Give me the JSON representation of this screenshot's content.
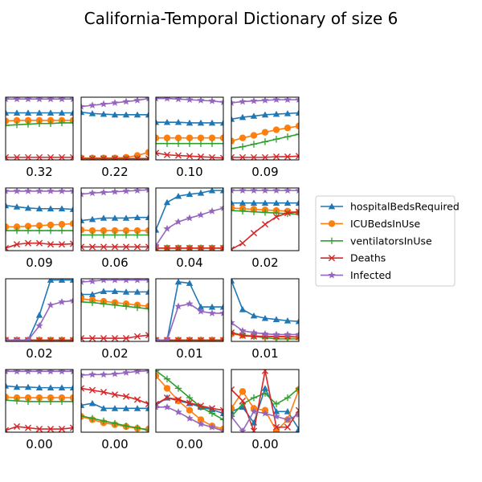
{
  "figure": {
    "title": "California-Temporal Dictionary of size 6"
  },
  "chart_data": {
    "type": "line",
    "title": "California-Temporal Dictionary of size 6",
    "x": [
      0,
      1,
      2,
      3,
      4,
      5,
      6
    ],
    "grid": false,
    "legend_placement": "center-right",
    "series_meta": [
      {
        "name": "hospitalBedsRequired",
        "color": "#1f77b4",
        "marker": "triangle"
      },
      {
        "name": "ICUBedsInUse",
        "color": "#ff7f0e",
        "marker": "circle"
      },
      {
        "name": "ventilatorsInUse",
        "color": "#2ca02c",
        "marker": "plus"
      },
      {
        "name": "Deaths",
        "color": "#d62728",
        "marker": "x"
      },
      {
        "name": "Infected",
        "color": "#9467bd",
        "marker": "star"
      }
    ],
    "panels": [
      {
        "label": "0.32",
        "series": {
          "hospitalBedsRequired": [
            0.75,
            0.75,
            0.75,
            0.75,
            0.75,
            0.75,
            0.75
          ],
          "ICUBedsInUse": [
            0.62,
            0.63,
            0.63,
            0.63,
            0.63,
            0.63,
            0.63
          ],
          "ventilatorsInUse": [
            0.55,
            0.56,
            0.57,
            0.58,
            0.58,
            0.59,
            0.59
          ],
          "Deaths": [
            0.04,
            0.04,
            0.04,
            0.04,
            0.04,
            0.04,
            0.04
          ],
          "Infected": [
            0.97,
            0.97,
            0.97,
            0.97,
            0.97,
            0.97,
            0.97
          ]
        }
      },
      {
        "label": "0.22",
        "series": {
          "hospitalBedsRequired": [
            0.76,
            0.74,
            0.73,
            0.72,
            0.72,
            0.72,
            0.72
          ],
          "ICUBedsInUse": [
            0.03,
            0.03,
            0.03,
            0.03,
            0.04,
            0.07,
            0.12
          ],
          "ventilatorsInUse": [
            0.02,
            0.02,
            0.02,
            0.02,
            0.02,
            0.02,
            0.02
          ],
          "Deaths": [
            0.02,
            0.02,
            0.02,
            0.02,
            0.02,
            0.02,
            0.02
          ],
          "Infected": [
            0.85,
            0.87,
            0.89,
            0.91,
            0.93,
            0.95,
            0.98
          ]
        }
      },
      {
        "label": "0.10",
        "series": {
          "hospitalBedsRequired": [
            0.6,
            0.6,
            0.6,
            0.59,
            0.59,
            0.59,
            0.59
          ],
          "ICUBedsInUse": [
            0.35,
            0.35,
            0.35,
            0.35,
            0.35,
            0.35,
            0.35
          ],
          "ventilatorsInUse": [
            0.26,
            0.26,
            0.26,
            0.26,
            0.26,
            0.26,
            0.26
          ],
          "Deaths": [
            0.11,
            0.08,
            0.07,
            0.06,
            0.05,
            0.04,
            0.03
          ],
          "Infected": [
            0.98,
            0.98,
            0.97,
            0.96,
            0.95,
            0.94,
            0.92
          ]
        }
      },
      {
        "label": "0.09",
        "series": {
          "hospitalBedsRequired": [
            0.65,
            0.68,
            0.7,
            0.72,
            0.73,
            0.74,
            0.75
          ],
          "ICUBedsInUse": [
            0.3,
            0.35,
            0.39,
            0.44,
            0.48,
            0.51,
            0.54
          ],
          "ventilatorsInUse": [
            0.18,
            0.21,
            0.25,
            0.29,
            0.33,
            0.37,
            0.41
          ],
          "Deaths": [
            0.04,
            0.04,
            0.04,
            0.04,
            0.05,
            0.05,
            0.06
          ],
          "Infected": [
            0.91,
            0.93,
            0.94,
            0.95,
            0.96,
            0.96,
            0.96
          ]
        }
      },
      {
        "label": "0.09",
        "series": {
          "hospitalBedsRequired": [
            0.72,
            0.7,
            0.68,
            0.67,
            0.67,
            0.67,
            0.66
          ],
          "ICUBedsInUse": [
            0.38,
            0.38,
            0.39,
            0.4,
            0.41,
            0.42,
            0.43
          ],
          "ventilatorsInUse": [
            0.32,
            0.32,
            0.32,
            0.32,
            0.32,
            0.32,
            0.32
          ],
          "Deaths": [
            0.04,
            0.1,
            0.12,
            0.12,
            0.1,
            0.1,
            0.11
          ],
          "Infected": [
            0.95,
            0.95,
            0.95,
            0.95,
            0.95,
            0.95,
            0.95
          ]
        }
      },
      {
        "label": "0.06",
        "series": {
          "hospitalBedsRequired": [
            0.48,
            0.5,
            0.52,
            0.52,
            0.52,
            0.53,
            0.53
          ],
          "ICUBedsInUse": [
            0.33,
            0.32,
            0.32,
            0.32,
            0.32,
            0.32,
            0.32
          ],
          "ventilatorsInUse": [
            0.25,
            0.25,
            0.25,
            0.25,
            0.25,
            0.25,
            0.25
          ],
          "Deaths": [
            0.06,
            0.06,
            0.06,
            0.06,
            0.06,
            0.06,
            0.06
          ],
          "Infected": [
            0.9,
            0.92,
            0.93,
            0.94,
            0.95,
            0.96,
            0.97
          ]
        }
      },
      {
        "label": "0.04",
        "series": {
          "hospitalBedsRequired": [
            0.33,
            0.77,
            0.87,
            0.9,
            0.92,
            0.96,
            0.96
          ],
          "ICUBedsInUse": [
            0.04,
            0.04,
            0.04,
            0.04,
            0.04,
            0.04,
            0.04
          ],
          "ventilatorsInUse": [
            0.04,
            0.04,
            0.04,
            0.04,
            0.04,
            0.04,
            0.04
          ],
          "Deaths": [
            0.04,
            0.04,
            0.04,
            0.04,
            0.04,
            0.04,
            0.04
          ],
          "Infected": [
            0.08,
            0.35,
            0.46,
            0.52,
            0.57,
            0.63,
            0.68
          ]
        }
      },
      {
        "label": "0.02",
        "series": {
          "hospitalBedsRequired": [
            0.76,
            0.76,
            0.76,
            0.76,
            0.76,
            0.76,
            0.76
          ],
          "ICUBedsInUse": [
            0.68,
            0.67,
            0.66,
            0.65,
            0.64,
            0.63,
            0.61
          ],
          "ventilatorsInUse": [
            0.64,
            0.63,
            0.62,
            0.61,
            0.6,
            0.59,
            0.58
          ],
          "Deaths": [
            0.02,
            0.12,
            0.28,
            0.42,
            0.54,
            0.6,
            0.62
          ],
          "Infected": [
            0.96,
            0.96,
            0.96,
            0.96,
            0.96,
            0.96,
            0.96
          ]
        }
      },
      {
        "label": "0.02",
        "series": {
          "hospitalBedsRequired": [
            0.02,
            0.02,
            0.02,
            0.42,
            0.98,
            0.98,
            0.98
          ],
          "ICUBedsInUse": [
            0.02,
            0.02,
            0.02,
            0.02,
            0.02,
            0.02,
            0.02
          ],
          "ventilatorsInUse": [
            0.02,
            0.02,
            0.02,
            0.02,
            0.02,
            0.02,
            0.02
          ],
          "Deaths": [
            0.02,
            0.02,
            0.02,
            0.02,
            0.02,
            0.02,
            0.02
          ],
          "Infected": [
            0.02,
            0.02,
            0.02,
            0.25,
            0.58,
            0.63,
            0.65
          ]
        }
      },
      {
        "label": "0.02",
        "series": {
          "hospitalBedsRequired": [
            0.75,
            0.75,
            0.8,
            0.8,
            0.79,
            0.79,
            0.79
          ],
          "ICUBedsInUse": [
            0.68,
            0.66,
            0.64,
            0.62,
            0.6,
            0.58,
            0.56
          ],
          "ventilatorsInUse": [
            0.63,
            0.62,
            0.6,
            0.58,
            0.56,
            0.54,
            0.52
          ],
          "Deaths": [
            0.05,
            0.05,
            0.05,
            0.05,
            0.05,
            0.08,
            0.1
          ],
          "Infected": [
            0.95,
            0.96,
            0.98,
            0.98,
            0.98,
            0.98,
            0.98
          ]
        }
      },
      {
        "label": "0.01",
        "series": {
          "hospitalBedsRequired": [
            0.02,
            0.02,
            0.95,
            0.93,
            0.55,
            0.55,
            0.55
          ],
          "ICUBedsInUse": [
            0.02,
            0.02,
            0.02,
            0.02,
            0.02,
            0.02,
            0.02
          ],
          "ventilatorsInUse": [
            0.02,
            0.02,
            0.02,
            0.02,
            0.02,
            0.02,
            0.02
          ],
          "Deaths": [
            0.02,
            0.02,
            0.02,
            0.02,
            0.02,
            0.02,
            0.02
          ],
          "Infected": [
            0.02,
            0.02,
            0.56,
            0.6,
            0.48,
            0.45,
            0.45
          ]
        }
      },
      {
        "label": "0.01",
        "series": {
          "hospitalBedsRequired": [
            0.97,
            0.51,
            0.41,
            0.37,
            0.35,
            0.33,
            0.32
          ],
          "ICUBedsInUse": [
            0.12,
            0.1,
            0.09,
            0.08,
            0.07,
            0.07,
            0.07
          ],
          "ventilatorsInUse": [
            0.14,
            0.1,
            0.08,
            0.06,
            0.04,
            0.04,
            0.04
          ],
          "Deaths": [
            0.14,
            0.09,
            0.08,
            0.08,
            0.08,
            0.08,
            0.07
          ],
          "Infected": [
            0.3,
            0.17,
            0.14,
            0.12,
            0.11,
            0.11,
            0.11
          ]
        }
      },
      {
        "label": "0.00",
        "series": {
          "hospitalBedsRequired": [
            0.74,
            0.72,
            0.72,
            0.71,
            0.71,
            0.71,
            0.71
          ],
          "ICUBedsInUse": [
            0.56,
            0.55,
            0.55,
            0.55,
            0.55,
            0.55,
            0.55
          ],
          "ventilatorsInUse": [
            0.51,
            0.5,
            0.49,
            0.49,
            0.49,
            0.49,
            0.49
          ],
          "Deaths": [
            0.03,
            0.09,
            0.07,
            0.05,
            0.05,
            0.05,
            0.07
          ],
          "Infected": [
            0.97,
            0.97,
            0.97,
            0.97,
            0.97,
            0.97,
            0.97
          ]
        }
      },
      {
        "label": "0.00",
        "series": {
          "hospitalBedsRequired": [
            0.43,
            0.46,
            0.38,
            0.38,
            0.38,
            0.38,
            0.38
          ],
          "ICUBedsInUse": [
            0.25,
            0.2,
            0.15,
            0.12,
            0.09,
            0.06,
            0.05
          ],
          "ventilatorsInUse": [
            0.26,
            0.22,
            0.18,
            0.14,
            0.1,
            0.07,
            0.03
          ],
          "Deaths": [
            0.7,
            0.67,
            0.64,
            0.6,
            0.57,
            0.52,
            0.45
          ],
          "Infected": [
            0.91,
            0.92,
            0.92,
            0.93,
            0.95,
            0.97,
            0.98
          ]
        }
      },
      {
        "label": "0.00",
        "series": {
          "hospitalBedsRequired": [
            0.43,
            0.55,
            0.5,
            0.46,
            0.4,
            0.36,
            0.3
          ],
          "ICUBedsInUse": [
            0.9,
            0.7,
            0.5,
            0.35,
            0.2,
            0.1,
            0.05
          ],
          "ventilatorsInUse": [
            0.98,
            0.85,
            0.7,
            0.55,
            0.4,
            0.3,
            0.2
          ],
          "Deaths": [
            0.45,
            0.55,
            0.52,
            0.47,
            0.42,
            0.38,
            0.35
          ],
          "Infected": [
            0.4,
            0.4,
            0.32,
            0.22,
            0.13,
            0.08,
            0.02
          ]
        }
      },
      {
        "label": "0.00",
        "series": {
          "hospitalBedsRequired": [
            0.33,
            0.4,
            0.15,
            0.7,
            0.33,
            0.33,
            0.05
          ],
          "ICUBedsInUse": [
            0.38,
            0.65,
            0.38,
            0.35,
            0.02,
            0.2,
            0.68
          ],
          "ventilatorsInUse": [
            0.25,
            0.45,
            0.55,
            0.62,
            0.45,
            0.55,
            0.7
          ],
          "Deaths": [
            0.68,
            0.5,
            0.02,
            0.98,
            0.08,
            0.08,
            0.35
          ],
          "Infected": [
            0.25,
            0.02,
            0.33,
            0.3,
            0.25,
            0.2,
            0.28
          ]
        }
      }
    ]
  }
}
